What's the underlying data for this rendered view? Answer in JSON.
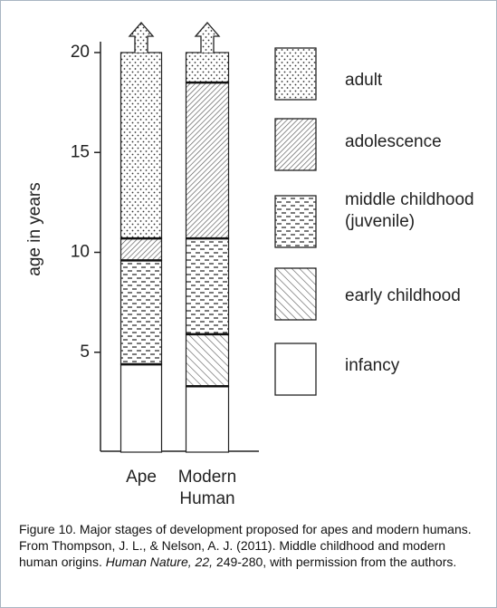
{
  "chart_data": {
    "type": "stacked_bar",
    "ylabel": "age in years",
    "categories": [
      "Ape",
      "Modern Human"
    ],
    "ylim": [
      0,
      20
    ],
    "yticks": [
      5,
      10,
      15,
      20
    ],
    "series": [
      {
        "name": "infancy",
        "color": "#ffffff",
        "pattern": "none",
        "values": [
          4.4,
          3.3
        ]
      },
      {
        "name": "early childhood",
        "color": "#ffffff",
        "pattern": "diagonal",
        "values": [
          0,
          2.6
        ]
      },
      {
        "name": "middle childhood (juvenile)",
        "color": "#ffffff",
        "pattern": "dashes",
        "values": [
          5.2,
          4.8
        ]
      },
      {
        "name": "adolescence",
        "color": "#ffffff",
        "pattern": "dense-diagonal",
        "values": [
          1.1,
          7.8
        ]
      },
      {
        "name": "adult",
        "color": "#ffffff",
        "pattern": "dots",
        "values": [
          9.3,
          1.5
        ]
      }
    ],
    "caption": [
      "Figure 10. Major stages of development proposed for apes and modern humans. From Thompson, J. L., & Nelson, A. J. (2011). Middle childhood and modern human origins. ",
      "Human Nature, 22,",
      " 249-280, with permission from the authors."
    ]
  }
}
